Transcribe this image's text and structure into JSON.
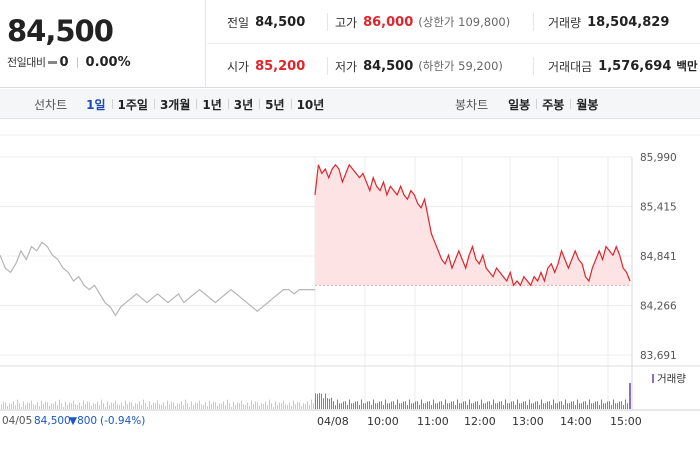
{
  "quote": {
    "price": "84,500",
    "change_label": "전일대비",
    "change_value": "0",
    "change_rate": "0.00%",
    "stats": {
      "prev_close_label": "전일",
      "prev_close": "84,500",
      "high_label": "고가",
      "high": "86,000",
      "upper_limit": "(상한가 109,800)",
      "volume_label": "거래량",
      "volume": "18,504,829",
      "open_label": "시가",
      "open": "85,200",
      "low_label": "저가",
      "low": "84,500",
      "lower_limit": "(하한가 59,200)",
      "value_label": "거래대금",
      "value": "1,576,694",
      "value_unit": "백만"
    }
  },
  "toolbar": {
    "line_chart_label": "선차트",
    "periods": [
      "1일",
      "1주일",
      "3개월",
      "1년",
      "3년",
      "5년",
      "10년"
    ],
    "active_period": "1일",
    "candle_chart_label": "봉차트",
    "candle_periods": [
      "일봉",
      "주봉",
      "월봉"
    ]
  },
  "colors": {
    "up": "#e0242b",
    "down": "#1a56c8",
    "prev_line": "#b5b5b5",
    "volume": "#8b6fc4",
    "active": "#1c49b6"
  },
  "chart_data": {
    "type": "line",
    "y_ticks": [
      "85,990",
      "85,415",
      "84,841",
      "84,266",
      "83,691"
    ],
    "ylim": [
      83691,
      85990
    ],
    "x_ticks": [
      "04/08",
      "10:00",
      "11:00",
      "12:00",
      "13:00",
      "14:00",
      "15:00"
    ],
    "prev_day_label": "04/05",
    "prev_day_price": "84,500",
    "prev_day_change": "▼800",
    "prev_day_rate": "(-0.94%)",
    "volume_legend": "거래량",
    "baseline": 84500,
    "prev_series": [
      84850,
      84700,
      84650,
      84750,
      84900,
      84800,
      84950,
      84900,
      85000,
      84950,
      84850,
      84800,
      84700,
      84650,
      84550,
      84600,
      84500,
      84450,
      84500,
      84400,
      84300,
      84250,
      84150,
      84250,
      84300,
      84350,
      84400,
      84350,
      84300,
      84350,
      84400,
      84350,
      84300,
      84350,
      84400,
      84300,
      84350,
      84400,
      84450,
      84400,
      84350,
      84300,
      84350,
      84400,
      84450,
      84400,
      84350,
      84300,
      84250,
      84200,
      84250,
      84300,
      84350,
      84400,
      84450,
      84450,
      84400,
      84450,
      84450,
      84450,
      84450
    ],
    "today_series": [
      85550,
      85900,
      85800,
      85850,
      85750,
      85850,
      85900,
      85850,
      85700,
      85800,
      85900,
      85850,
      85800,
      85750,
      85800,
      85700,
      85600,
      85750,
      85650,
      85600,
      85700,
      85550,
      85650,
      85600,
      85550,
      85650,
      85550,
      85500,
      85600,
      85550,
      85450,
      85400,
      85500,
      85300,
      85100,
      85000,
      84900,
      84800,
      84750,
      84850,
      84700,
      84800,
      84900,
      84800,
      84700,
      84850,
      84950,
      84800,
      84750,
      84850,
      84700,
      84650,
      84600,
      84700,
      84650,
      84600,
      84550,
      84650,
      84500,
      84550,
      84500,
      84600,
      84550,
      84500,
      84600,
      84550,
      84650,
      84550,
      84700,
      84750,
      84650,
      84750,
      84900,
      84800,
      84700,
      84800,
      84900,
      84800,
      84750,
      84600,
      84550,
      84700,
      84800,
      84900,
      84800,
      84950,
      84900,
      84850,
      84950,
      84850,
      84700,
      84650,
      84550
    ]
  }
}
